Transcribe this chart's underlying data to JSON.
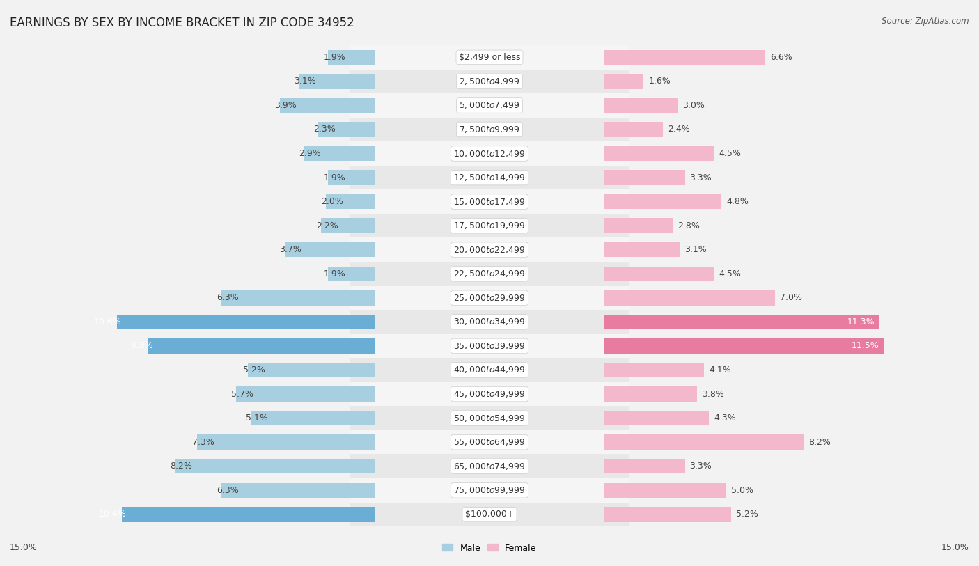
{
  "title": "EARNINGS BY SEX BY INCOME BRACKET IN ZIP CODE 34952",
  "source": "Source: ZipAtlas.com",
  "categories": [
    "$2,499 or less",
    "$2,500 to $4,999",
    "$5,000 to $7,499",
    "$7,500 to $9,999",
    "$10,000 to $12,499",
    "$12,500 to $14,999",
    "$15,000 to $17,499",
    "$17,500 to $19,999",
    "$20,000 to $22,499",
    "$22,500 to $24,999",
    "$25,000 to $29,999",
    "$30,000 to $34,999",
    "$35,000 to $39,999",
    "$40,000 to $44,999",
    "$45,000 to $49,999",
    "$50,000 to $54,999",
    "$55,000 to $64,999",
    "$65,000 to $74,999",
    "$75,000 to $99,999",
    "$100,000+"
  ],
  "male_values": [
    1.9,
    3.1,
    3.9,
    2.3,
    2.9,
    1.9,
    2.0,
    2.2,
    3.7,
    1.9,
    6.3,
    10.6,
    9.3,
    5.2,
    5.7,
    5.1,
    7.3,
    8.2,
    6.3,
    10.4
  ],
  "female_values": [
    6.6,
    1.6,
    3.0,
    2.4,
    4.5,
    3.3,
    4.8,
    2.8,
    3.1,
    4.5,
    7.0,
    11.3,
    11.5,
    4.1,
    3.8,
    4.3,
    8.2,
    3.3,
    5.0,
    5.2
  ],
  "male_color": "#a8cfe0",
  "female_color": "#f4b8cc",
  "male_highlight_color": "#6aaed6",
  "female_highlight_color": "#e87ca0",
  "highlight_threshold": 9.0,
  "row_colors": [
    "#f5f5f5",
    "#e8e8e8"
  ],
  "xlim": 15.0,
  "bar_height": 0.62,
  "title_fontsize": 12,
  "value_fontsize": 9,
  "category_fontsize": 9,
  "legend_fontsize": 9,
  "axis_label_fontsize": 9
}
